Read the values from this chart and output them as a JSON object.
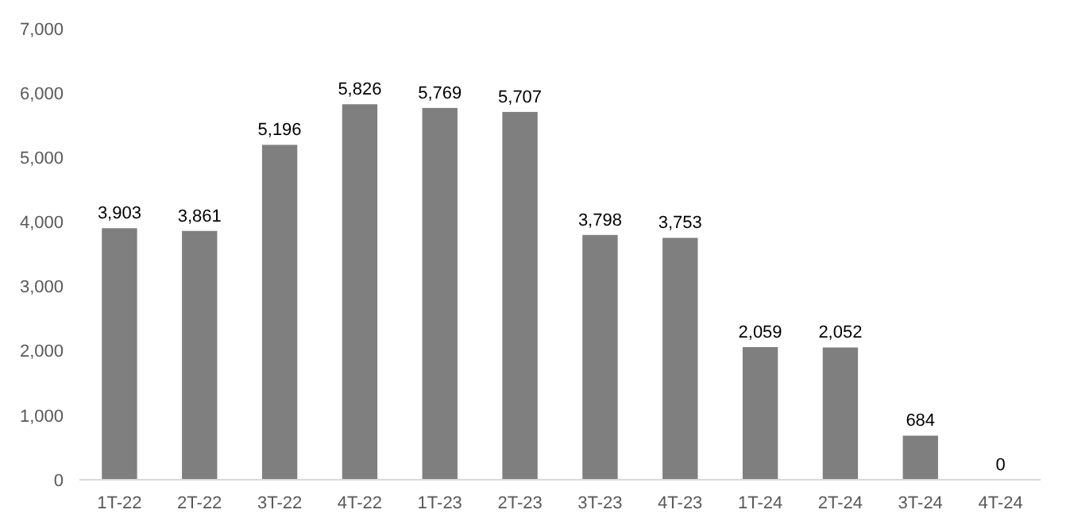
{
  "chart_data": {
    "type": "bar",
    "categories": [
      "1T-22",
      "2T-22",
      "3T-22",
      "4T-22",
      "1T-23",
      "2T-23",
      "3T-23",
      "4T-23",
      "1T-24",
      "2T-24",
      "3T-24",
      "4T-24"
    ],
    "values": [
      3903,
      3861,
      5196,
      5826,
      5769,
      5707,
      3798,
      3753,
      2059,
      2052,
      684,
      0
    ],
    "color": "#7f7f7f",
    "ylim": [
      0,
      7000
    ],
    "yticks": [
      {
        "value": 0,
        "label": "0"
      },
      {
        "value": 1000,
        "label": "1,000"
      },
      {
        "value": 2000,
        "label": "2,000"
      },
      {
        "value": 3000,
        "label": "3,000"
      },
      {
        "value": 4000,
        "label": "4,000"
      },
      {
        "value": 5000,
        "label": "5,000"
      },
      {
        "value": 6000,
        "label": "6,000"
      },
      {
        "value": 7000,
        "label": "7,000"
      }
    ],
    "value_labels": [
      "3,903",
      "3,861",
      "5,196",
      "5,826",
      "5,769",
      "5,707",
      "3,798",
      "3,753",
      "2,059",
      "2,052",
      "684",
      "0"
    ],
    "grid": false
  }
}
